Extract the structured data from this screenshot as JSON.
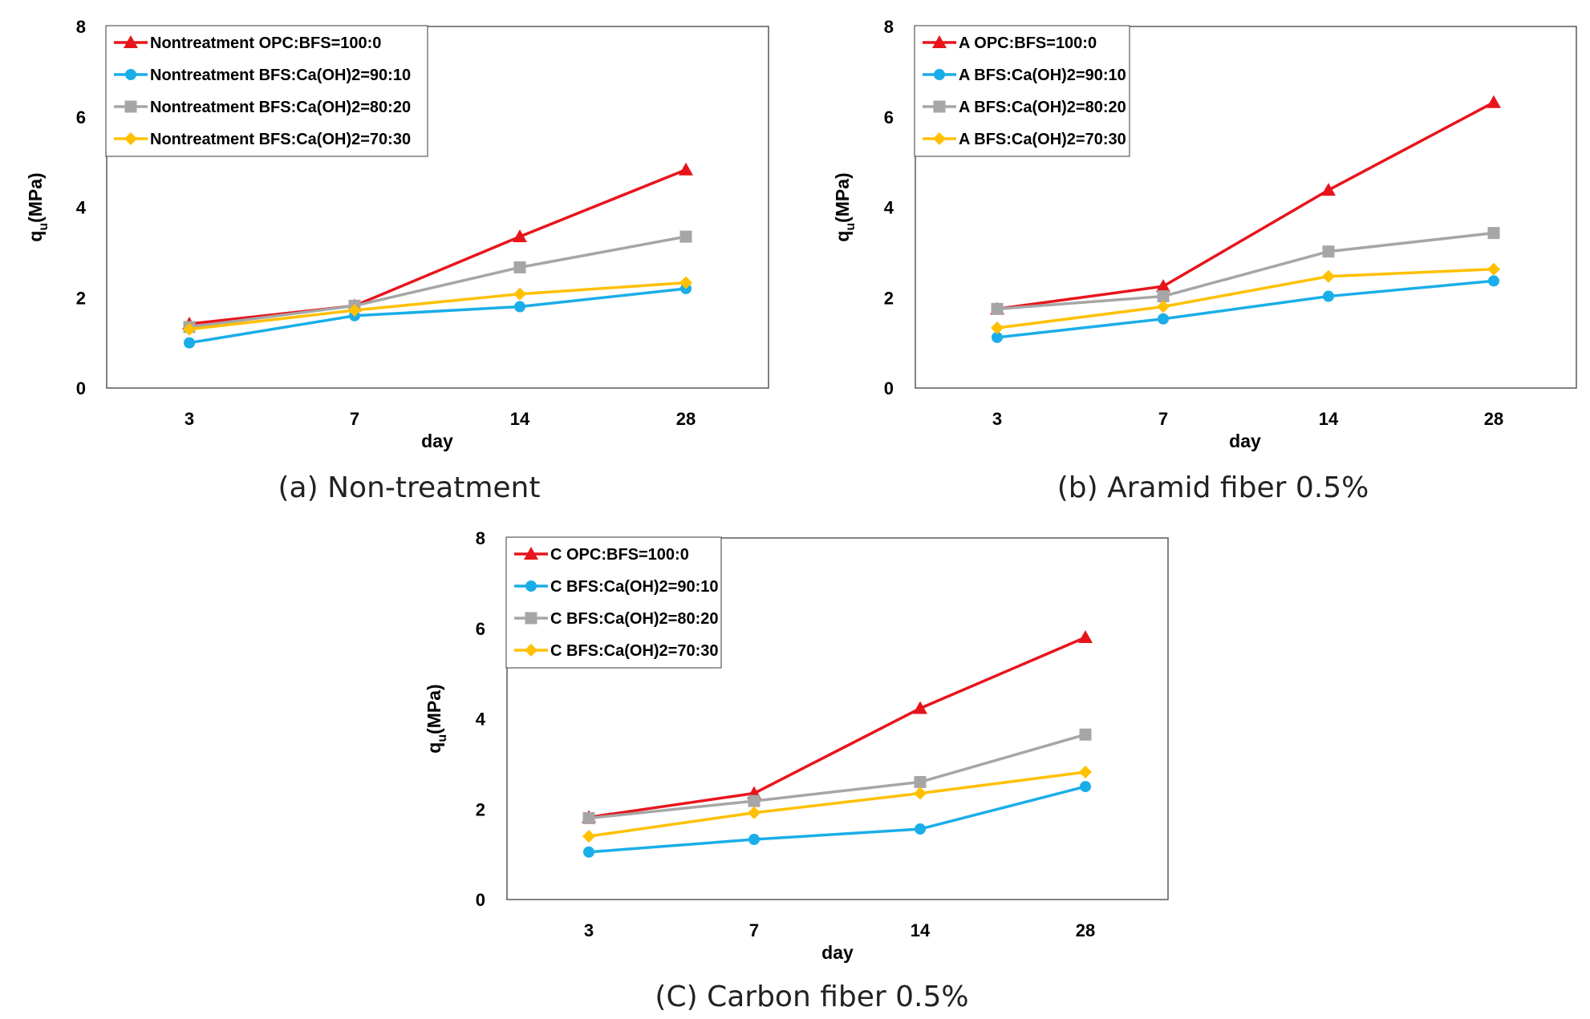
{
  "chart_data": [
    {
      "type": "line",
      "caption": "(a) Non-treatment",
      "xlabel": "day",
      "ylabel_main": "q",
      "ylabel_sub": "u",
      "ylabel_unit": "(MPa)",
      "categories": [
        "3",
        "7",
        "14",
        "28"
      ],
      "ylim": [
        0,
        8
      ],
      "yticks": [
        "0",
        "2",
        "4",
        "6",
        "8"
      ],
      "legend_position": "top-left",
      "series": [
        {
          "name": "Nontreatment OPC:BFS=100:0",
          "color": "#e8141c",
          "marker": "triangle",
          "values": [
            1.42,
            1.82,
            3.35,
            4.83
          ]
        },
        {
          "name": "Nontreatment BFS:Ca(OH)2=90:10",
          "color": "#1aaee8",
          "marker": "circle",
          "values": [
            1.0,
            1.6,
            1.8,
            2.2
          ]
        },
        {
          "name": "Nontreatment BFS:Ca(OH)2=80:20",
          "color": "#a6a6a6",
          "marker": "square",
          "values": [
            1.35,
            1.82,
            2.67,
            3.35
          ]
        },
        {
          "name": "Nontreatment BFS:Ca(OH)2=70:30",
          "color": "#ffc000",
          "marker": "diamond",
          "values": [
            1.3,
            1.72,
            2.08,
            2.33
          ]
        }
      ]
    },
    {
      "type": "line",
      "caption": "(b) Aramid fiber 0.5%",
      "xlabel": "day",
      "ylabel_main": "q",
      "ylabel_sub": "u",
      "ylabel_unit": "(MPa)",
      "categories": [
        "3",
        "7",
        "14",
        "28"
      ],
      "ylim": [
        0,
        8
      ],
      "yticks": [
        "0",
        "2",
        "4",
        "6",
        "8"
      ],
      "legend_position": "top-left",
      "series": [
        {
          "name": "A OPC:BFS=100:0",
          "color": "#e8141c",
          "marker": "triangle",
          "values": [
            1.75,
            2.25,
            4.38,
            6.32
          ]
        },
        {
          "name": "A BFS:Ca(OH)2=90:10",
          "color": "#1aaee8",
          "marker": "circle",
          "values": [
            1.12,
            1.53,
            2.03,
            2.37
          ]
        },
        {
          "name": "A BFS:Ca(OH)2=80:20",
          "color": "#a6a6a6",
          "marker": "square",
          "values": [
            1.75,
            2.03,
            3.02,
            3.43
          ]
        },
        {
          "name": "A BFS:Ca(OH)2=70:30",
          "color": "#ffc000",
          "marker": "diamond",
          "values": [
            1.33,
            1.8,
            2.47,
            2.63
          ]
        }
      ]
    },
    {
      "type": "line",
      "caption": "(C) Carbon fiber 0.5%",
      "xlabel": "day",
      "ylabel_main": "q",
      "ylabel_sub": "u",
      "ylabel_unit": "(MPa)",
      "categories": [
        "3",
        "7",
        "14",
        "28"
      ],
      "ylim": [
        0,
        8
      ],
      "yticks": [
        "0",
        "2",
        "4",
        "6",
        "8"
      ],
      "legend_position": "top-left",
      "series": [
        {
          "name": "C OPC:BFS=100:0",
          "color": "#e8141c",
          "marker": "triangle",
          "values": [
            1.82,
            2.35,
            4.23,
            5.8
          ]
        },
        {
          "name": "C BFS:Ca(OH)2=90:10",
          "color": "#1aaee8",
          "marker": "circle",
          "values": [
            1.05,
            1.33,
            1.56,
            2.5
          ]
        },
        {
          "name": "C BFS:Ca(OH)2=80:20",
          "color": "#a6a6a6",
          "marker": "square",
          "values": [
            1.8,
            2.18,
            2.6,
            3.65
          ]
        },
        {
          "name": "C BFS:Ca(OH)2=70:30",
          "color": "#ffc000",
          "marker": "diamond",
          "values": [
            1.4,
            1.92,
            2.35,
            2.82
          ]
        }
      ]
    }
  ]
}
